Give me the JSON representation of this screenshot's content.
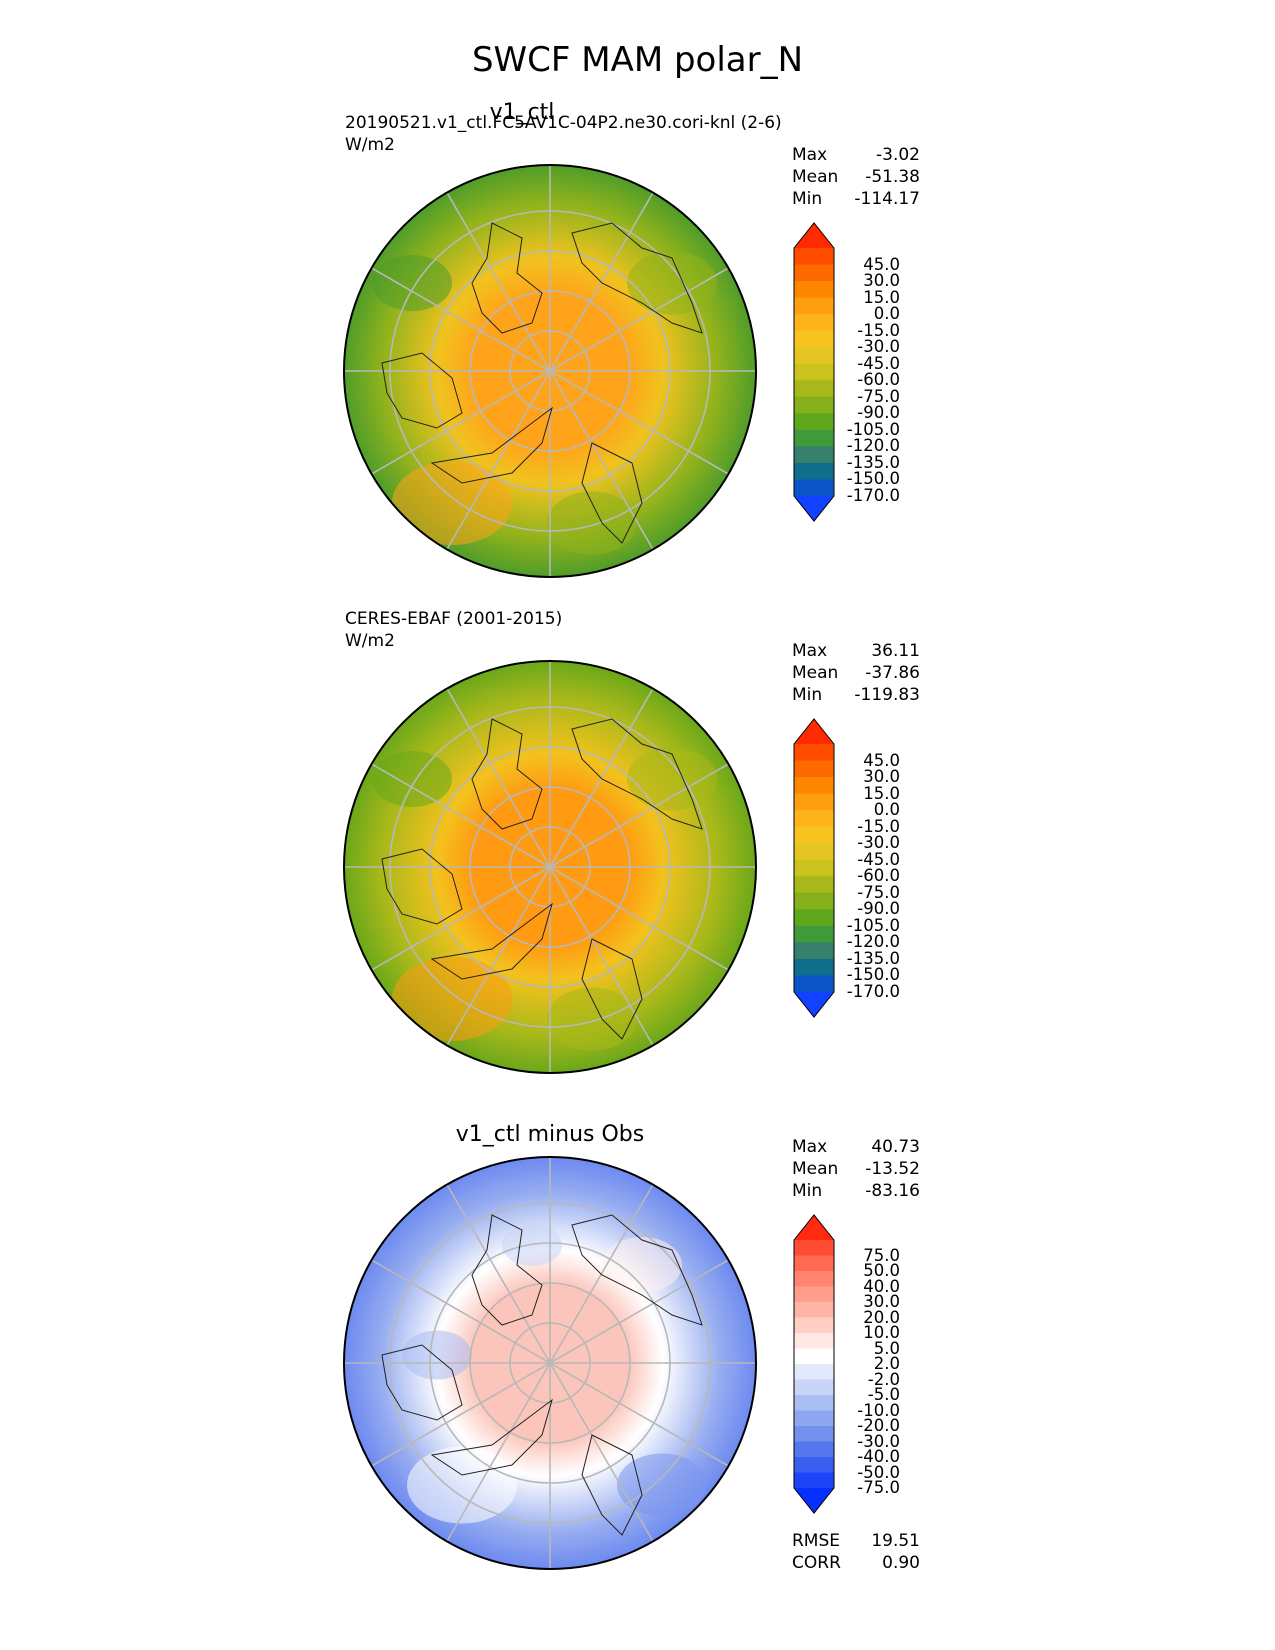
{
  "figure": {
    "title": "SWCF MAM polar_N"
  },
  "panels": [
    {
      "id": "test",
      "title": "v1_ctl",
      "case_label": "20190521.v1_ctl.FC5AV1C-04P2.ne30.cori-knl (2-6)",
      "units": "W/m2",
      "stats": [
        {
          "label": "Max",
          "value": "-3.02"
        },
        {
          "label": "Mean",
          "value": "-51.38"
        },
        {
          "label": "Min",
          "value": "-114.17"
        }
      ],
      "colorbar": {
        "levels": [
          "45.0",
          "30.0",
          "15.0",
          "0.0",
          "-15.0",
          "-30.0",
          "-45.0",
          "-60.0",
          "-75.0",
          "-90.0",
          "-105.0",
          "-120.0",
          "-135.0",
          "-150.0",
          "-170.0"
        ],
        "colors": [
          "#ff2a00",
          "#ff4d00",
          "#ff6a00",
          "#ff8600",
          "#ff9e0f",
          "#ffb31a",
          "#f7c41f",
          "#e3c623",
          "#c9c21f",
          "#a8b81a",
          "#86b01a",
          "#5ea71a",
          "#3f9a3a",
          "#378069",
          "#0e6e8c",
          "#0b55c8",
          "#1142ff"
        ]
      },
      "map": {
        "kind": "absolute",
        "polar_color": "#ffa41a",
        "mid_color": "#f0c31f",
        "outer_color": "#8fb21c",
        "edge_color": "#4f9d2a"
      }
    },
    {
      "id": "ref",
      "title": "",
      "case_label": "CERES-EBAF (2001-2015)",
      "units": "W/m2",
      "stats": [
        {
          "label": "Max",
          "value": "36.11"
        },
        {
          "label": "Mean",
          "value": "-37.86"
        },
        {
          "label": "Min",
          "value": "-119.83"
        }
      ],
      "colorbar": {
        "levels": [
          "45.0",
          "30.0",
          "15.0",
          "0.0",
          "-15.0",
          "-30.0",
          "-45.0",
          "-60.0",
          "-75.0",
          "-90.0",
          "-105.0",
          "-120.0",
          "-135.0",
          "-150.0",
          "-170.0"
        ],
        "colors": [
          "#ff2a00",
          "#ff4d00",
          "#ff6a00",
          "#ff8600",
          "#ff9e0f",
          "#ffb31a",
          "#f7c41f",
          "#e3c623",
          "#c9c21f",
          "#a8b81a",
          "#86b01a",
          "#5ea71a",
          "#3f9a3a",
          "#378069",
          "#0e6e8c",
          "#0b55c8",
          "#1142ff"
        ]
      },
      "map": {
        "kind": "absolute",
        "polar_color": "#ff9a12",
        "mid_color": "#f3c21e",
        "outer_color": "#a8b81a",
        "edge_color": "#6aa81a"
      }
    },
    {
      "id": "diff",
      "title": "v1_ctl minus Obs",
      "case_label": "",
      "units": "",
      "stats": [
        {
          "label": "Max",
          "value": "40.73"
        },
        {
          "label": "Mean",
          "value": "-13.52"
        },
        {
          "label": "Min",
          "value": "-83.16"
        }
      ],
      "colorbar": {
        "levels": [
          "75.0",
          "50.0",
          "40.0",
          "30.0",
          "20.0",
          "10.0",
          "5.0",
          "2.0",
          "-2.0",
          "-5.0",
          "-10.0",
          "-20.0",
          "-30.0",
          "-40.0",
          "-50.0",
          "-75.0"
        ],
        "colors": [
          "#ff2a10",
          "#ff4d33",
          "#ff6a50",
          "#ff8570",
          "#ff9e8a",
          "#ffb5a5",
          "#ffcfc5",
          "#ffe8e3",
          "#ffffff",
          "#e3e9fb",
          "#c8d4f8",
          "#aabdf4",
          "#8fa6f1",
          "#7290ee",
          "#5577ee",
          "#3a5ff0",
          "#1d45f7",
          "#0630ff"
        ]
      },
      "map": {
        "kind": "difference",
        "polar_color": "#fcc5bb",
        "mid_color": "#ffffff",
        "outer_color": "#98aef0",
        "edge_color": "#6d8af0"
      }
    }
  ],
  "summary_metrics": [
    {
      "label": "RMSE",
      "value": "19.51"
    },
    {
      "label": "CORR",
      "value": "0.90"
    }
  ]
}
